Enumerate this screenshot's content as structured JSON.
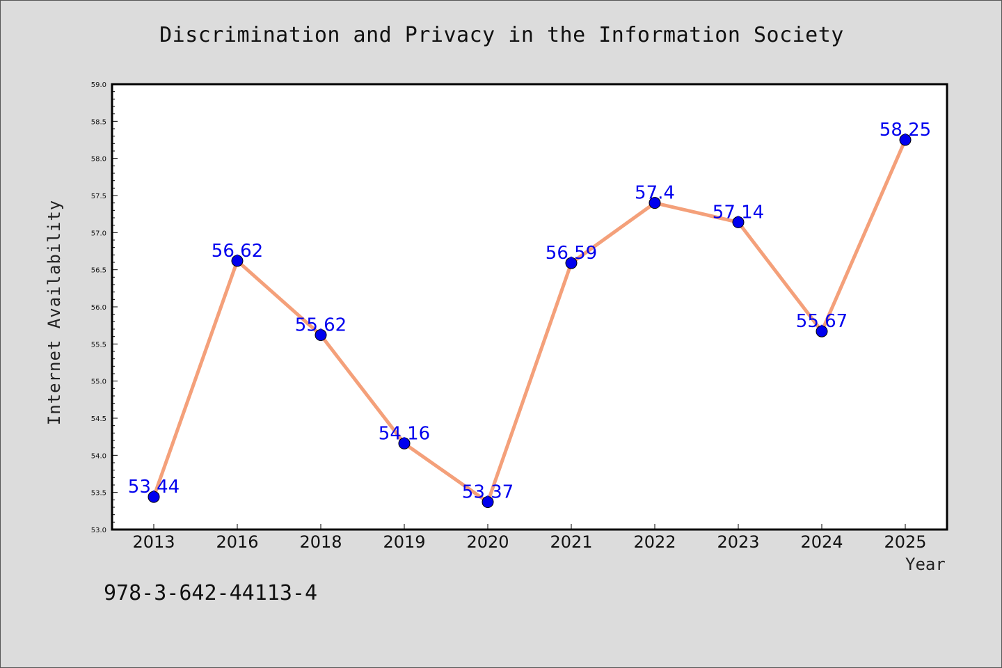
{
  "chart_data": {
    "type": "line",
    "title": "Discrimination and Privacy in the Information Society",
    "xlabel": "Year",
    "ylabel": "Internet Availability",
    "categories": [
      "2013",
      "2016",
      "2018",
      "2019",
      "2020",
      "2021",
      "2022",
      "2023",
      "2024",
      "2025"
    ],
    "series": [
      {
        "values": [
          53.44,
          56.62,
          55.62,
          54.16,
          53.37,
          56.59,
          57.4,
          57.14,
          55.67,
          58.25
        ],
        "labels": [
          "53.44",
          "56.62",
          "55.62",
          "54.16",
          "53.37",
          "56.59",
          "57.4",
          "57.14",
          "55.67",
          "58.25"
        ]
      }
    ],
    "ylim": [
      53.0,
      59.0
    ],
    "yticks": [
      "53.0",
      "53.5",
      "54.0",
      "54.5",
      "55.0",
      "55.5",
      "56.0",
      "56.5",
      "57.0",
      "57.5",
      "58.0",
      "58.5",
      "59.0"
    ],
    "grid": false,
    "colors": {
      "line": "#f4a07a",
      "marker": "#0000ee",
      "data_label": "#0000ee",
      "plot_background": "#ffffff",
      "figure_background": "#dcdcdc"
    }
  },
  "annotation": "978-3-642-44113-4"
}
